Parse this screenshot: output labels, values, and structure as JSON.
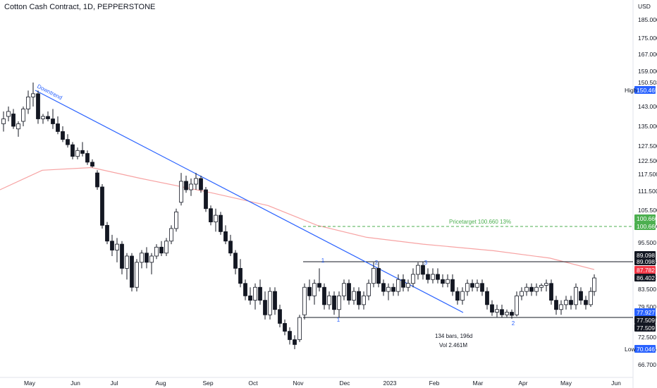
{
  "header": {
    "title": "Cotton Cash Contract, 1D, PEPPERSTONE"
  },
  "chart_data": {
    "type": "candlestick",
    "currency": "USD",
    "y_ticks": [
      "185.000",
      "175.000",
      "167.000",
      "159.000",
      "150.503",
      "143.000",
      "135.000",
      "127.500",
      "122.500",
      "117.500",
      "111.500",
      "105.500",
      "100.660",
      "95.500",
      "89.098",
      "86.402",
      "83.500",
      "79.500",
      "77.509",
      "72.500",
      "70.046",
      "66.700"
    ],
    "x_ticks": [
      "May",
      "Jun",
      "Jul",
      "Aug",
      "Sep",
      "Oct",
      "Nov",
      "Dec",
      "2023",
      "Feb",
      "Mar",
      "Apr",
      "May",
      "Jun"
    ],
    "price_labels": [
      {
        "label": "High",
        "value": "150.465",
        "color": "#2962ff"
      },
      {
        "label": "",
        "value": "100.660",
        "color": "#4caf50"
      },
      {
        "label": "",
        "value": "100.660",
        "color": "#4caf50"
      },
      {
        "label": "",
        "value": "89.098",
        "color": "#131722"
      },
      {
        "label": "",
        "value": "89.098",
        "color": "#131722"
      },
      {
        "label": "",
        "value": "87.782",
        "color": "#f23645"
      },
      {
        "label": "",
        "value": "86.402",
        "color": "#131722"
      },
      {
        "label": "",
        "value": "77.927",
        "color": "#2962ff"
      },
      {
        "label": "",
        "value": "77.509",
        "color": "#131722"
      },
      {
        "label": "",
        "value": "77.509",
        "color": "#131722"
      },
      {
        "label": "Low",
        "value": "70.046",
        "color": "#2962ff"
      }
    ],
    "annotations": {
      "downtrend": "Downtrend",
      "price_target": "Pricetarget 100.660 13%",
      "bars_info": "134 bars, 196d",
      "vol_info": "Vol 2.461M",
      "points": [
        "1",
        "1",
        "2",
        "2",
        "3"
      ]
    },
    "levels": {
      "resistance": 89.098,
      "support": 77.509,
      "target": 100.66
    },
    "moving_average": [
      [
        0,
        113
      ],
      [
        60,
        120
      ],
      [
        130,
        122.5
      ],
      [
        200,
        118
      ],
      [
        300,
        112
      ],
      [
        380,
        106.5
      ],
      [
        450,
        100.5
      ],
      [
        520,
        96.5
      ],
      [
        600,
        94.5
      ],
      [
        700,
        92.5
      ],
      [
        780,
        90
      ],
      [
        843,
        87.8
      ]
    ],
    "candles": [
      [
        5,
        136,
        141,
        133,
        138
      ],
      [
        12,
        139,
        143,
        137,
        141
      ],
      [
        19,
        140,
        142,
        134,
        135
      ],
      [
        26,
        134,
        137,
        131,
        136
      ],
      [
        33,
        137,
        143,
        135,
        142
      ],
      [
        40,
        142,
        148,
        140,
        146
      ],
      [
        47,
        146,
        150.5,
        143,
        147
      ],
      [
        54,
        147,
        148,
        136,
        138
      ],
      [
        61,
        138,
        140,
        136,
        139
      ],
      [
        68,
        139,
        141,
        137,
        138
      ],
      [
        75,
        138,
        142,
        134,
        136
      ],
      [
        82,
        136,
        139,
        132,
        133
      ],
      [
        89,
        133,
        135,
        129,
        130
      ],
      [
        96,
        130,
        132,
        127,
        128
      ],
      [
        103,
        128,
        129,
        123,
        124
      ],
      [
        110,
        124,
        127,
        123,
        126
      ],
      [
        117,
        126,
        129,
        124,
        125
      ],
      [
        124,
        125,
        126,
        121,
        122
      ],
      [
        131,
        122,
        123,
        120,
        120.5
      ],
      [
        138,
        118,
        119,
        112,
        113
      ],
      [
        145,
        113,
        114,
        100,
        101
      ],
      [
        152,
        101,
        102,
        95,
        96
      ],
      [
        159,
        96,
        98,
        91,
        93
      ],
      [
        166,
        93,
        97,
        89,
        95
      ],
      [
        173,
        95,
        96,
        87,
        88
      ],
      [
        180,
        88,
        92,
        86,
        91
      ],
      [
        187,
        91,
        92,
        83,
        84
      ],
      [
        194,
        84,
        90,
        83,
        89
      ],
      [
        201,
        89,
        93,
        88,
        92
      ],
      [
        208,
        92,
        94,
        88,
        89
      ],
      [
        215,
        89,
        92,
        87,
        91
      ],
      [
        222,
        91,
        95,
        90,
        94
      ],
      [
        229,
        94,
        96,
        91,
        92
      ],
      [
        236,
        92,
        97,
        91,
        96
      ],
      [
        243,
        96,
        101,
        95,
        100
      ],
      [
        250,
        100,
        106,
        99,
        105
      ],
      [
        257,
        108,
        118,
        107,
        115
      ],
      [
        264,
        115,
        117,
        111,
        112
      ],
      [
        271,
        112,
        116,
        110,
        114
      ],
      [
        278,
        114,
        118,
        112,
        116
      ],
      [
        285,
        116,
        117,
        111,
        112
      ],
      [
        292,
        112,
        113,
        105,
        106
      ],
      [
        299,
        106,
        107,
        101,
        102
      ],
      [
        306,
        102,
        106,
        99,
        104
      ],
      [
        313,
        104,
        105,
        98,
        99
      ],
      [
        320,
        99,
        101,
        95,
        96
      ],
      [
        327,
        96,
        98,
        91,
        92
      ],
      [
        334,
        92,
        93,
        87,
        88
      ],
      [
        341,
        88,
        90,
        84,
        85
      ],
      [
        348,
        85,
        86,
        81,
        82
      ],
      [
        355,
        82,
        84,
        80,
        81
      ],
      [
        362,
        81,
        85,
        79,
        84
      ],
      [
        369,
        84,
        86,
        80,
        81
      ],
      [
        376,
        81,
        83,
        77,
        78
      ],
      [
        383,
        78,
        84,
        77,
        83
      ],
      [
        390,
        83,
        84,
        78,
        79
      ],
      [
        397,
        79,
        80,
        75,
        76
      ],
      [
        404,
        76,
        77,
        73,
        74
      ],
      [
        411,
        74,
        75,
        71,
        72
      ],
      [
        418,
        72,
        73,
        70.05,
        71
      ],
      [
        425,
        72,
        78,
        71.5,
        77.5
      ],
      [
        432,
        78,
        85,
        77,
        84
      ],
      [
        439,
        84,
        86,
        81,
        82
      ],
      [
        446,
        82,
        86,
        80,
        85
      ],
      [
        453,
        85,
        88,
        83,
        84
      ],
      [
        460,
        84,
        85,
        79,
        80
      ],
      [
        467,
        80,
        83,
        79,
        82
      ],
      [
        474,
        82,
        83,
        78,
        79
      ],
      [
        481,
        79,
        83,
        77.5,
        82
      ],
      [
        488,
        82,
        86,
        81,
        85
      ],
      [
        495,
        85,
        86,
        80,
        81
      ],
      [
        502,
        81,
        84,
        80,
        83
      ],
      [
        509,
        83,
        84,
        79,
        80
      ],
      [
        516,
        80,
        83,
        79,
        82
      ],
      [
        523,
        82,
        86,
        81,
        85
      ],
      [
        530,
        85,
        89,
        84,
        88
      ],
      [
        537,
        88,
        89,
        84,
        85
      ],
      [
        544,
        85,
        86,
        82,
        83
      ],
      [
        551,
        83,
        85,
        81,
        84
      ],
      [
        558,
        84,
        85,
        82,
        83
      ],
      [
        565,
        83,
        87,
        82,
        86
      ],
      [
        572,
        86,
        87,
        83,
        84
      ],
      [
        579,
        84,
        86,
        83,
        85
      ],
      [
        586,
        85,
        88,
        84,
        87
      ],
      [
        593,
        87,
        89,
        86,
        88.5
      ],
      [
        600,
        88.5,
        89.1,
        86,
        87
      ],
      [
        607,
        87,
        88,
        85,
        86
      ],
      [
        614,
        86,
        88,
        85,
        87
      ],
      [
        621,
        87,
        88,
        85,
        86
      ],
      [
        628,
        86,
        87,
        84,
        85
      ],
      [
        635,
        85,
        87,
        84,
        86
      ],
      [
        642,
        86,
        87,
        82,
        83
      ],
      [
        649,
        83,
        84,
        80,
        81
      ],
      [
        656,
        81,
        84,
        80,
        83
      ],
      [
        663,
        83,
        86,
        82,
        85
      ],
      [
        670,
        85,
        86,
        83,
        84
      ],
      [
        677,
        84,
        86,
        83,
        85
      ],
      [
        684,
        85,
        86,
        82,
        83
      ],
      [
        691,
        83,
        84,
        79,
        80
      ],
      [
        698,
        80,
        81,
        77.8,
        78.5
      ],
      [
        705,
        78.5,
        80,
        77.6,
        79
      ],
      [
        712,
        79,
        80,
        77.5,
        78
      ],
      [
        719,
        78,
        79,
        77.6,
        78.5
      ],
      [
        726,
        78.5,
        79,
        77.2,
        77.9
      ],
      [
        733,
        78,
        83,
        77.7,
        82
      ],
      [
        740,
        82,
        84,
        81,
        83
      ],
      [
        747,
        83,
        85,
        82,
        84
      ],
      [
        754,
        84,
        85,
        82,
        83
      ],
      [
        761,
        83,
        85,
        82,
        84
      ],
      [
        768,
        84,
        85,
        83,
        84.5
      ],
      [
        775,
        84.5,
        86,
        83,
        85
      ],
      [
        782,
        85,
        86,
        80,
        81
      ],
      [
        789,
        81,
        82,
        78,
        79
      ],
      [
        796,
        79,
        81,
        78,
        80
      ],
      [
        803,
        80,
        82,
        79,
        81
      ],
      [
        810,
        81,
        82,
        79,
        80
      ],
      [
        817,
        80,
        85,
        79,
        84
      ],
      [
        824,
        83,
        84,
        80,
        81
      ],
      [
        831,
        81,
        82,
        79,
        80
      ],
      [
        838,
        80,
        84,
        79.5,
        83
      ],
      [
        843,
        83,
        87,
        82,
        86.4
      ]
    ]
  }
}
